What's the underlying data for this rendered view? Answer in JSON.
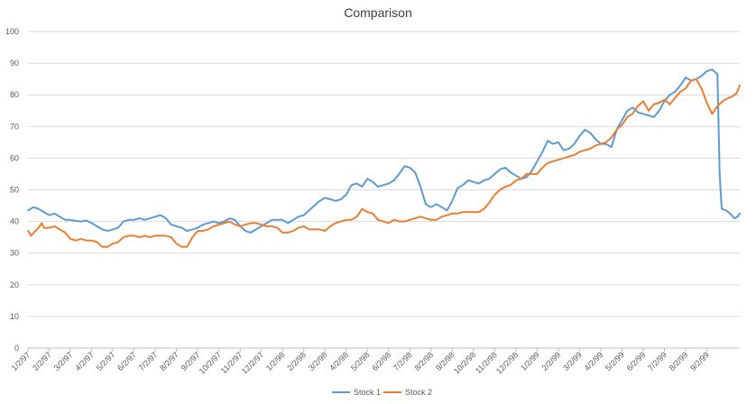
{
  "chart_data": {
    "type": "line",
    "title": "Comparison",
    "xlabel": "",
    "ylabel": "",
    "ylim": [
      0,
      100
    ],
    "yticks": [
      0,
      10,
      20,
      30,
      40,
      50,
      60,
      70,
      80,
      90,
      100
    ],
    "categories": [
      "1/2/97",
      "2/2/97",
      "3/2/97",
      "4/2/97",
      "5/2/97",
      "6/2/97",
      "7/2/97",
      "8/2/97",
      "9/2/97",
      "10/2/97",
      "11/2/97",
      "12/2/97",
      "1/2/98",
      "2/2/98",
      "3/2/98",
      "4/2/98",
      "5/2/98",
      "6/2/98",
      "7/2/98",
      "8/2/98",
      "9/2/98",
      "10/2/98",
      "11/2/98",
      "12/2/98",
      "1/2/99",
      "2/2/99",
      "3/2/99",
      "4/2/99",
      "5/2/99",
      "6/2/99",
      "7/2/99",
      "8/2/99",
      "9/2/99"
    ],
    "grid": true,
    "legend_position": "bottom",
    "series": [
      {
        "name": "Stock 1",
        "color": "#5b9bd5",
        "values": [
          [
            0,
            43.5
          ],
          [
            0.25,
            44.5
          ],
          [
            0.5,
            44
          ],
          [
            0.75,
            43
          ],
          [
            1,
            42
          ],
          [
            1.25,
            42.5
          ],
          [
            1.5,
            41.5
          ],
          [
            1.75,
            40.5
          ],
          [
            2,
            40.5
          ],
          [
            2.25,
            40.2
          ],
          [
            2.5,
            40
          ],
          [
            2.75,
            40.3
          ],
          [
            3,
            39.5
          ],
          [
            3.25,
            38.5
          ],
          [
            3.5,
            37.5
          ],
          [
            3.75,
            37
          ],
          [
            4,
            37.5
          ],
          [
            4.25,
            38
          ],
          [
            4.5,
            40
          ],
          [
            4.75,
            40.5
          ],
          [
            5,
            40.5
          ],
          [
            5.25,
            41
          ],
          [
            5.5,
            40.5
          ],
          [
            5.75,
            41
          ],
          [
            6,
            41.5
          ],
          [
            6.25,
            42
          ],
          [
            6.5,
            41
          ],
          [
            6.75,
            39
          ],
          [
            7,
            38.5
          ],
          [
            7.25,
            38
          ],
          [
            7.5,
            37
          ],
          [
            7.75,
            37.5
          ],
          [
            8,
            38
          ],
          [
            8.25,
            39
          ],
          [
            8.5,
            39.5
          ],
          [
            8.75,
            40
          ],
          [
            9,
            39.5
          ],
          [
            9.25,
            40
          ],
          [
            9.5,
            41
          ],
          [
            9.75,
            40.5
          ],
          [
            10,
            38.5
          ],
          [
            10.25,
            37
          ],
          [
            10.5,
            36.5
          ],
          [
            10.75,
            37.5
          ],
          [
            11,
            38.5
          ],
          [
            11.25,
            39.5
          ],
          [
            11.5,
            40.5
          ],
          [
            11.75,
            40.5
          ],
          [
            12,
            40.5
          ],
          [
            12.25,
            39.5
          ],
          [
            12.5,
            40.5
          ],
          [
            12.75,
            41.5
          ],
          [
            13,
            42
          ],
          [
            13.25,
            43.5
          ],
          [
            13.5,
            45
          ],
          [
            13.75,
            46.5
          ],
          [
            14,
            47.5
          ],
          [
            14.25,
            47
          ],
          [
            14.5,
            46.5
          ],
          [
            14.75,
            47
          ],
          [
            15,
            48.5
          ],
          [
            15.25,
            51.5
          ],
          [
            15.5,
            52
          ],
          [
            15.75,
            51
          ],
          [
            16,
            53.5
          ],
          [
            16.25,
            52.5
          ],
          [
            16.5,
            51
          ],
          [
            16.75,
            51.5
          ],
          [
            17,
            52
          ],
          [
            17.25,
            53
          ],
          [
            17.5,
            55
          ],
          [
            17.75,
            57.5
          ],
          [
            18,
            57
          ],
          [
            18.25,
            55.5
          ],
          [
            18.5,
            51
          ],
          [
            18.75,
            45.5
          ],
          [
            19,
            44.5
          ],
          [
            19.25,
            45.5
          ],
          [
            19.5,
            44.5
          ],
          [
            19.75,
            43.5
          ],
          [
            20,
            46.5
          ],
          [
            20.25,
            50.5
          ],
          [
            20.5,
            51.5
          ],
          [
            20.75,
            53
          ],
          [
            21,
            52.5
          ],
          [
            21.25,
            52
          ],
          [
            21.5,
            53
          ],
          [
            21.75,
            53.5
          ],
          [
            22,
            55
          ],
          [
            22.25,
            56.5
          ],
          [
            22.5,
            57
          ],
          [
            22.75,
            55.5
          ],
          [
            23,
            54.5
          ],
          [
            23.25,
            53.5
          ],
          [
            23.5,
            54
          ],
          [
            23.75,
            56
          ],
          [
            24,
            59
          ],
          [
            24.25,
            62
          ],
          [
            24.5,
            65.5
          ],
          [
            24.75,
            64.5
          ],
          [
            25,
            65
          ],
          [
            25.25,
            62.5
          ],
          [
            25.5,
            63
          ],
          [
            25.75,
            64.5
          ],
          [
            26,
            67
          ],
          [
            26.25,
            69
          ],
          [
            26.5,
            68
          ],
          [
            26.75,
            66
          ],
          [
            27,
            64.5
          ],
          [
            27.25,
            64.5
          ],
          [
            27.5,
            63.5
          ],
          [
            27.75,
            69
          ],
          [
            28,
            72
          ],
          [
            28.25,
            75
          ],
          [
            28.5,
            76
          ],
          [
            28.75,
            74.5
          ],
          [
            29,
            74
          ],
          [
            29.25,
            73.5
          ],
          [
            29.5,
            73
          ],
          [
            29.75,
            75
          ],
          [
            30,
            78
          ],
          [
            30.25,
            80
          ],
          [
            30.5,
            81
          ],
          [
            30.75,
            83
          ],
          [
            31,
            85.5
          ],
          [
            31.25,
            84.5
          ],
          [
            31.5,
            85
          ],
          [
            31.75,
            86
          ],
          [
            32,
            87.5
          ],
          [
            32.25,
            88
          ],
          [
            32.5,
            86.5
          ],
          [
            32.6,
            55
          ],
          [
            32.7,
            44
          ],
          [
            32.9,
            43.5
          ],
          [
            33.1,
            42.5
          ],
          [
            33.3,
            41
          ],
          [
            33.45,
            41.5
          ],
          [
            33.55,
            42.5
          ]
        ]
      },
      {
        "name": "Stock 2",
        "color": "#ed7d31",
        "values": [
          [
            0,
            37
          ],
          [
            0.15,
            35.5
          ],
          [
            0.35,
            37
          ],
          [
            0.5,
            38
          ],
          [
            0.65,
            39.5
          ],
          [
            0.75,
            38
          ],
          [
            1,
            38
          ],
          [
            1.25,
            38.5
          ],
          [
            1.5,
            37.5
          ],
          [
            1.75,
            36.5
          ],
          [
            2,
            34.5
          ],
          [
            2.25,
            34
          ],
          [
            2.5,
            34.5
          ],
          [
            2.75,
            34
          ],
          [
            3,
            34
          ],
          [
            3.25,
            33.5
          ],
          [
            3.5,
            32
          ],
          [
            3.75,
            32
          ],
          [
            4,
            33
          ],
          [
            4.25,
            33.5
          ],
          [
            4.5,
            35
          ],
          [
            4.75,
            35.5
          ],
          [
            5,
            35.5
          ],
          [
            5.25,
            35
          ],
          [
            5.5,
            35.5
          ],
          [
            5.75,
            35
          ],
          [
            6,
            35.5
          ],
          [
            6.25,
            35.5
          ],
          [
            6.5,
            35.5
          ],
          [
            6.75,
            35
          ],
          [
            7,
            33
          ],
          [
            7.25,
            32
          ],
          [
            7.5,
            32
          ],
          [
            7.75,
            35
          ],
          [
            8,
            37
          ],
          [
            8.25,
            37
          ],
          [
            8.5,
            37.5
          ],
          [
            8.75,
            38.5
          ],
          [
            9,
            39
          ],
          [
            9.25,
            39.5
          ],
          [
            9.5,
            40
          ],
          [
            9.75,
            39
          ],
          [
            10,
            38.5
          ],
          [
            10.25,
            39
          ],
          [
            10.5,
            39.5
          ],
          [
            10.75,
            39.5
          ],
          [
            11,
            39
          ],
          [
            11.25,
            38.5
          ],
          [
            11.5,
            38.5
          ],
          [
            11.75,
            38
          ],
          [
            12,
            36.5
          ],
          [
            12.25,
            36.5
          ],
          [
            12.5,
            37
          ],
          [
            12.75,
            38
          ],
          [
            13,
            38.5
          ],
          [
            13.25,
            37.5
          ],
          [
            13.5,
            37.5
          ],
          [
            13.75,
            37.5
          ],
          [
            14,
            37
          ],
          [
            14.25,
            38.5
          ],
          [
            14.5,
            39.5
          ],
          [
            14.75,
            40
          ],
          [
            15,
            40.5
          ],
          [
            15.25,
            40.5
          ],
          [
            15.5,
            41.5
          ],
          [
            15.75,
            44
          ],
          [
            16,
            43
          ],
          [
            16.25,
            42.5
          ],
          [
            16.5,
            40.5
          ],
          [
            16.75,
            40
          ],
          [
            17,
            39.5
          ],
          [
            17.25,
            40.5
          ],
          [
            17.5,
            40
          ],
          [
            17.75,
            40
          ],
          [
            18,
            40.5
          ],
          [
            18.25,
            41
          ],
          [
            18.5,
            41.5
          ],
          [
            18.75,
            41
          ],
          [
            19,
            40.5
          ],
          [
            19.25,
            40.5
          ],
          [
            19.5,
            41.5
          ],
          [
            19.75,
            42
          ],
          [
            20,
            42.5
          ],
          [
            20.25,
            42.5
          ],
          [
            20.5,
            43
          ],
          [
            20.75,
            43
          ],
          [
            21,
            43
          ],
          [
            21.25,
            43
          ],
          [
            21.5,
            44
          ],
          [
            21.75,
            46
          ],
          [
            22,
            48.5
          ],
          [
            22.25,
            50
          ],
          [
            22.5,
            51
          ],
          [
            22.75,
            51.5
          ],
          [
            23,
            53
          ],
          [
            23.25,
            53.5
          ],
          [
            23.5,
            55
          ],
          [
            23.75,
            55
          ],
          [
            24,
            55
          ],
          [
            24.25,
            57
          ],
          [
            24.5,
            58.5
          ],
          [
            24.75,
            59
          ],
          [
            25,
            59.5
          ],
          [
            25.25,
            60
          ],
          [
            25.5,
            60.5
          ],
          [
            25.75,
            61
          ],
          [
            26,
            62
          ],
          [
            26.25,
            62.5
          ],
          [
            26.5,
            63
          ],
          [
            26.75,
            64
          ],
          [
            27,
            64.5
          ],
          [
            27.25,
            65
          ],
          [
            27.5,
            66.5
          ],
          [
            27.75,
            69
          ],
          [
            28,
            70.5
          ],
          [
            28.25,
            73
          ],
          [
            28.5,
            74
          ],
          [
            28.75,
            76.5
          ],
          [
            29,
            78
          ],
          [
            29.25,
            75
          ],
          [
            29.5,
            77
          ],
          [
            29.75,
            77.5
          ],
          [
            30,
            78.5
          ],
          [
            30.25,
            77
          ],
          [
            30.5,
            79
          ],
          [
            30.75,
            81
          ],
          [
            31,
            82
          ],
          [
            31.25,
            84.5
          ],
          [
            31.5,
            85
          ],
          [
            31.75,
            82
          ],
          [
            32,
            77.5
          ],
          [
            32.25,
            74
          ],
          [
            32.5,
            76.5
          ],
          [
            32.75,
            78
          ],
          [
            33,
            79
          ],
          [
            33.2,
            79.5
          ],
          [
            33.4,
            80.5
          ],
          [
            33.55,
            83
          ]
        ]
      }
    ]
  }
}
